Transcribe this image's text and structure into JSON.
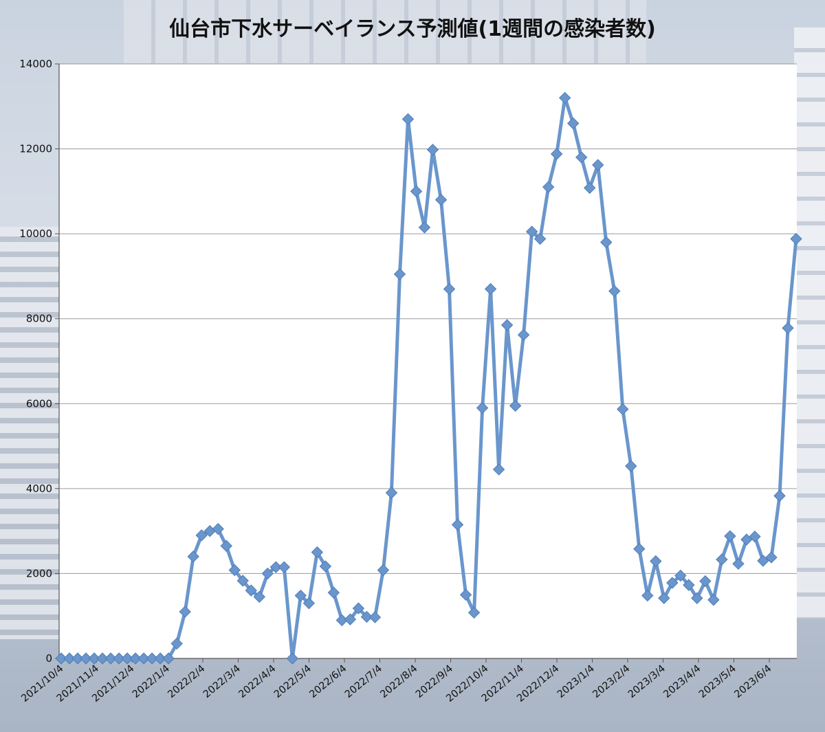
{
  "chart_data": {
    "type": "line",
    "title": "仙台市下水サーベイランス予測値(1週間の感染者数)",
    "xlabel": "",
    "ylabel": "",
    "ylim": [
      0,
      14000
    ],
    "yticks": [
      0,
      2000,
      4000,
      6000,
      8000,
      10000,
      12000,
      14000
    ],
    "grid": true,
    "legend": "none",
    "x_tick_labels": [
      "2021/10/4",
      "2021/11/4",
      "2021/12/4",
      "2022/1/4",
      "2022/2/4",
      "2022/3/4",
      "2022/4/4",
      "2022/5/4",
      "2022/6/4",
      "2022/7/4",
      "2022/8/4",
      "2022/9/4",
      "2022/10/4",
      "2022/11/4",
      "2022/12/4",
      "2023/1/4",
      "2023/2/4",
      "2023/3/4",
      "2023/4/4",
      "2023/5/4",
      "2023/6/4"
    ],
    "series": [
      {
        "color": "#6a96cc",
        "marker": "diamond",
        "values": [
          0,
          0,
          0,
          0,
          0,
          0,
          0,
          0,
          0,
          0,
          0,
          0,
          0,
          0,
          350,
          1100,
          2400,
          2900,
          3000,
          3050,
          2650,
          2080,
          1830,
          1600,
          1450,
          2000,
          2150,
          2150,
          0,
          1480,
          1300,
          2500,
          2170,
          1550,
          900,
          920,
          1180,
          980,
          970,
          2080,
          3900,
          9050,
          12700,
          11000,
          10150,
          11980,
          10800,
          8700,
          3150,
          1500,
          1080,
          5900,
          8700,
          4450,
          7850,
          5950,
          7620,
          10050,
          9880,
          11100,
          11880,
          13200,
          12600,
          11800,
          11080,
          11620,
          9800,
          8650,
          5870,
          4530,
          2580,
          1480,
          2290,
          1420,
          1780,
          1950,
          1730,
          1420,
          1820,
          1380,
          2330,
          2880,
          2230,
          2800,
          2870,
          2300,
          2380,
          3830,
          7780,
          9880
        ]
      }
    ]
  }
}
